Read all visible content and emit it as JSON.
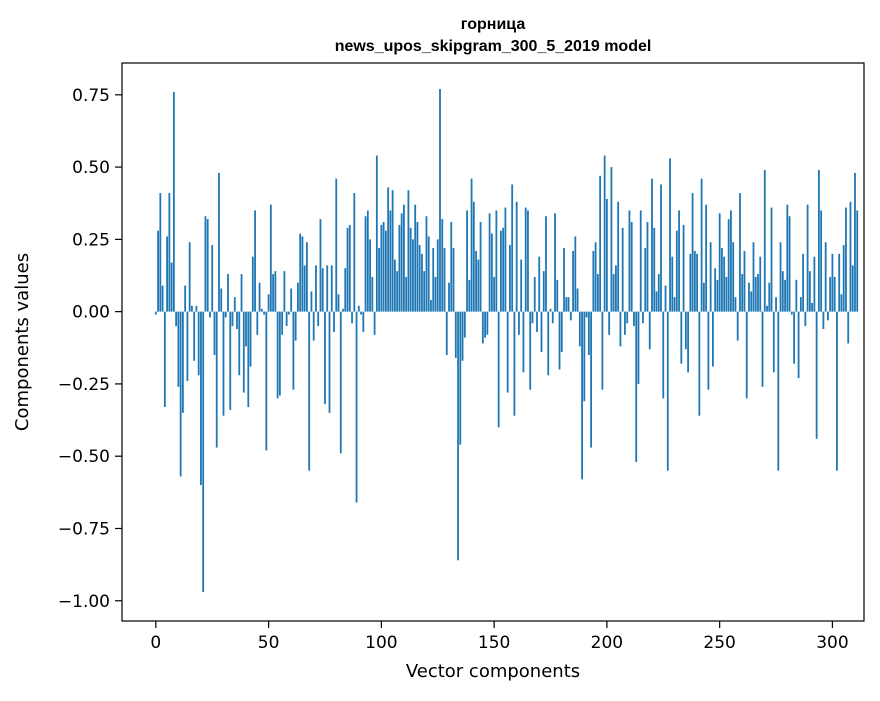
{
  "chart_data": {
    "type": "bar",
    "title_line1": "горница",
    "title_line2": "news_upos_skipgram_300_5_2019 model",
    "xlabel": "Vector components",
    "ylabel": "Components values",
    "xlim": [
      -15,
      314
    ],
    "ylim": [
      -1.07,
      0.86
    ],
    "xticks": [
      0,
      50,
      100,
      150,
      200,
      250,
      300
    ],
    "xtick_labels": [
      "0",
      "50",
      "100",
      "150",
      "200",
      "250",
      "300"
    ],
    "yticks": [
      -1.0,
      -0.75,
      -0.5,
      -0.25,
      0.0,
      0.25,
      0.5,
      0.75
    ],
    "ytick_labels": [
      "−1.00",
      "−0.75",
      "−0.50",
      "−0.25",
      "0.00",
      "0.25",
      "0.50",
      "0.75"
    ],
    "grid": false,
    "bar_color": "#1f77b4",
    "values": [
      -0.01,
      0.28,
      0.41,
      0.09,
      -0.33,
      0.26,
      0.41,
      0.17,
      0.76,
      -0.05,
      -0.26,
      -0.57,
      -0.35,
      0.09,
      -0.24,
      0.24,
      0.02,
      -0.17,
      0.02,
      -0.22,
      -0.6,
      -0.97,
      0.33,
      0.32,
      -0.02,
      0.23,
      -0.15,
      -0.47,
      0.48,
      0.08,
      -0.36,
      -0.02,
      0.13,
      -0.34,
      -0.05,
      0.05,
      -0.06,
      -0.22,
      0.13,
      -0.28,
      -0.12,
      -0.33,
      -0.19,
      0.19,
      0.35,
      -0.08,
      0.1,
      0.01,
      -0.01,
      -0.48,
      0.06,
      0.37,
      0.13,
      0.14,
      -0.3,
      -0.29,
      -0.08,
      0.14,
      -0.05,
      -0.01,
      0.08,
      -0.27,
      -0.1,
      0.1,
      0.27,
      0.26,
      0.16,
      0.24,
      -0.55,
      0.07,
      -0.1,
      0.16,
      -0.05,
      0.32,
      0.15,
      -0.32,
      0.16,
      -0.35,
      0.16,
      -0.07,
      0.46,
      0.06,
      -0.49,
      0.01,
      0.15,
      0.29,
      0.3,
      -0.04,
      0.41,
      -0.66,
      0.02,
      -0.01,
      -0.07,
      0.33,
      0.35,
      0.25,
      0.12,
      -0.08,
      0.54,
      0.22,
      0.3,
      0.31,
      0.28,
      0.43,
      0.35,
      0.42,
      0.18,
      0.14,
      0.3,
      0.34,
      0.37,
      0.12,
      0.42,
      0.29,
      0.25,
      0.37,
      0.31,
      0.23,
      0.2,
      0.14,
      0.33,
      0.26,
      0.04,
      0.22,
      0.12,
      0.25,
      0.77,
      0.32,
      0.22,
      -0.15,
      0.1,
      0.31,
      0.22,
      -0.16,
      -0.86,
      -0.46,
      -0.17,
      -0.09,
      0.35,
      0.11,
      0.46,
      0.38,
      0.21,
      0.18,
      0.31,
      -0.11,
      -0.09,
      -0.08,
      0.34,
      0.27,
      0.12,
      0.35,
      -0.4,
      0.28,
      0.29,
      0.36,
      -0.28,
      0.23,
      0.44,
      -0.36,
      0.38,
      -0.08,
      0.18,
      -0.21,
      0.36,
      0.35,
      -0.27,
      -0.04,
      0.12,
      -0.07,
      0.19,
      -0.14,
      0.14,
      0.33,
      -0.22,
      0.01,
      -0.04,
      0.34,
      0.11,
      -0.2,
      -0.14,
      0.22,
      0.05,
      0.05,
      -0.03,
      0.21,
      0.26,
      0.08,
      -0.12,
      -0.58,
      -0.31,
      -0.02,
      -0.15,
      -0.47,
      0.21,
      0.24,
      0.13,
      0.47,
      -0.27,
      0.54,
      0.39,
      -0.08,
      0.5,
      0.13,
      0.16,
      0.38,
      -0.12,
      0.29,
      -0.08,
      -0.04,
      0.35,
      0.31,
      -0.05,
      -0.52,
      -0.25,
      0.35,
      -0.04,
      0.22,
      0.31,
      -0.13,
      0.46,
      0.29,
      0.07,
      0.13,
      0.44,
      -0.3,
      0.09,
      -0.55,
      0.53,
      0.19,
      0.05,
      0.28,
      0.35,
      -0.18,
      0.3,
      -0.13,
      -0.21,
      0.2,
      0.41,
      0.21,
      0.2,
      -0.36,
      0.46,
      0.1,
      0.37,
      -0.27,
      0.24,
      -0.19,
      0.15,
      0.11,
      0.34,
      0.22,
      0.19,
      0.12,
      0.32,
      0.35,
      0.24,
      0.05,
      -0.1,
      0.41,
      0.13,
      0.21,
      -0.3,
      0.1,
      0.07,
      0.24,
      0.12,
      0.13,
      0.19,
      -0.26,
      0.49,
      0.02,
      0.1,
      0.36,
      -0.21,
      0.05,
      -0.55,
      0.24,
      0.14,
      0.11,
      0.37,
      0.33,
      -0.01,
      -0.18,
      0.11,
      -0.23,
      0.05,
      0.2,
      -0.05,
      0.37,
      0.14,
      0.03,
      0.19,
      -0.44,
      0.49,
      0.35,
      -0.06,
      0.24,
      -0.03,
      0.12,
      0.2,
      0.12,
      -0.55,
      0.2,
      0.06,
      0.23,
      0.36,
      -0.11,
      0.38,
      0.16,
      0.48,
      0.35
    ]
  }
}
